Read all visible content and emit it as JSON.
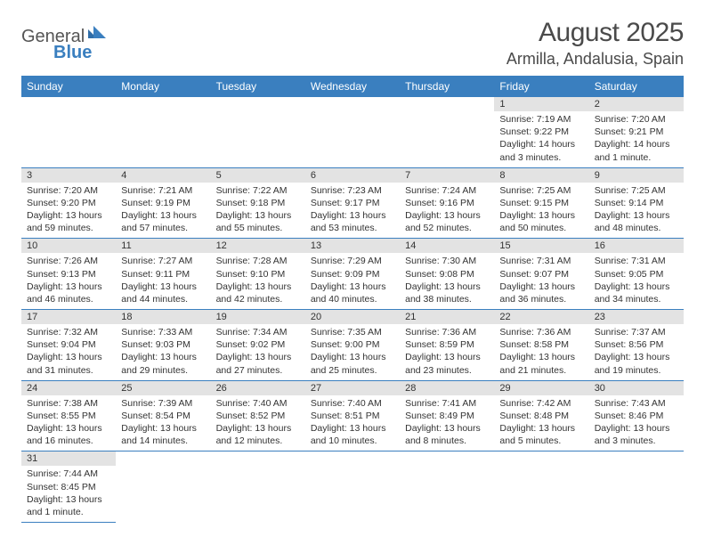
{
  "logo": {
    "text1": "General",
    "text2": "Blue"
  },
  "title": "August 2025",
  "location": "Armilla, Andalusia, Spain",
  "dayNames": [
    "Sunday",
    "Monday",
    "Tuesday",
    "Wednesday",
    "Thursday",
    "Friday",
    "Saturday"
  ],
  "colors": {
    "headerBlue": "#3a7fbf",
    "grayBar": "#e3e3e3",
    "text": "#333333",
    "titleText": "#4a4a4a"
  },
  "firstDayOffset": 5,
  "days": [
    {
      "n": "1",
      "sunrise": "7:19 AM",
      "sunset": "9:22 PM",
      "daylight": "14 hours and 3 minutes."
    },
    {
      "n": "2",
      "sunrise": "7:20 AM",
      "sunset": "9:21 PM",
      "daylight": "14 hours and 1 minute."
    },
    {
      "n": "3",
      "sunrise": "7:20 AM",
      "sunset": "9:20 PM",
      "daylight": "13 hours and 59 minutes."
    },
    {
      "n": "4",
      "sunrise": "7:21 AM",
      "sunset": "9:19 PM",
      "daylight": "13 hours and 57 minutes."
    },
    {
      "n": "5",
      "sunrise": "7:22 AM",
      "sunset": "9:18 PM",
      "daylight": "13 hours and 55 minutes."
    },
    {
      "n": "6",
      "sunrise": "7:23 AM",
      "sunset": "9:17 PM",
      "daylight": "13 hours and 53 minutes."
    },
    {
      "n": "7",
      "sunrise": "7:24 AM",
      "sunset": "9:16 PM",
      "daylight": "13 hours and 52 minutes."
    },
    {
      "n": "8",
      "sunrise": "7:25 AM",
      "sunset": "9:15 PM",
      "daylight": "13 hours and 50 minutes."
    },
    {
      "n": "9",
      "sunrise": "7:25 AM",
      "sunset": "9:14 PM",
      "daylight": "13 hours and 48 minutes."
    },
    {
      "n": "10",
      "sunrise": "7:26 AM",
      "sunset": "9:13 PM",
      "daylight": "13 hours and 46 minutes."
    },
    {
      "n": "11",
      "sunrise": "7:27 AM",
      "sunset": "9:11 PM",
      "daylight": "13 hours and 44 minutes."
    },
    {
      "n": "12",
      "sunrise": "7:28 AM",
      "sunset": "9:10 PM",
      "daylight": "13 hours and 42 minutes."
    },
    {
      "n": "13",
      "sunrise": "7:29 AM",
      "sunset": "9:09 PM",
      "daylight": "13 hours and 40 minutes."
    },
    {
      "n": "14",
      "sunrise": "7:30 AM",
      "sunset": "9:08 PM",
      "daylight": "13 hours and 38 minutes."
    },
    {
      "n": "15",
      "sunrise": "7:31 AM",
      "sunset": "9:07 PM",
      "daylight": "13 hours and 36 minutes."
    },
    {
      "n": "16",
      "sunrise": "7:31 AM",
      "sunset": "9:05 PM",
      "daylight": "13 hours and 34 minutes."
    },
    {
      "n": "17",
      "sunrise": "7:32 AM",
      "sunset": "9:04 PM",
      "daylight": "13 hours and 31 minutes."
    },
    {
      "n": "18",
      "sunrise": "7:33 AM",
      "sunset": "9:03 PM",
      "daylight": "13 hours and 29 minutes."
    },
    {
      "n": "19",
      "sunrise": "7:34 AM",
      "sunset": "9:02 PM",
      "daylight": "13 hours and 27 minutes."
    },
    {
      "n": "20",
      "sunrise": "7:35 AM",
      "sunset": "9:00 PM",
      "daylight": "13 hours and 25 minutes."
    },
    {
      "n": "21",
      "sunrise": "7:36 AM",
      "sunset": "8:59 PM",
      "daylight": "13 hours and 23 minutes."
    },
    {
      "n": "22",
      "sunrise": "7:36 AM",
      "sunset": "8:58 PM",
      "daylight": "13 hours and 21 minutes."
    },
    {
      "n": "23",
      "sunrise": "7:37 AM",
      "sunset": "8:56 PM",
      "daylight": "13 hours and 19 minutes."
    },
    {
      "n": "24",
      "sunrise": "7:38 AM",
      "sunset": "8:55 PM",
      "daylight": "13 hours and 16 minutes."
    },
    {
      "n": "25",
      "sunrise": "7:39 AM",
      "sunset": "8:54 PM",
      "daylight": "13 hours and 14 minutes."
    },
    {
      "n": "26",
      "sunrise": "7:40 AM",
      "sunset": "8:52 PM",
      "daylight": "13 hours and 12 minutes."
    },
    {
      "n": "27",
      "sunrise": "7:40 AM",
      "sunset": "8:51 PM",
      "daylight": "13 hours and 10 minutes."
    },
    {
      "n": "28",
      "sunrise": "7:41 AM",
      "sunset": "8:49 PM",
      "daylight": "13 hours and 8 minutes."
    },
    {
      "n": "29",
      "sunrise": "7:42 AM",
      "sunset": "8:48 PM",
      "daylight": "13 hours and 5 minutes."
    },
    {
      "n": "30",
      "sunrise": "7:43 AM",
      "sunset": "8:46 PM",
      "daylight": "13 hours and 3 minutes."
    },
    {
      "n": "31",
      "sunrise": "7:44 AM",
      "sunset": "8:45 PM",
      "daylight": "13 hours and 1 minute."
    }
  ],
  "labels": {
    "sunrise": "Sunrise: ",
    "sunset": "Sunset: ",
    "daylight": "Daylight: "
  }
}
